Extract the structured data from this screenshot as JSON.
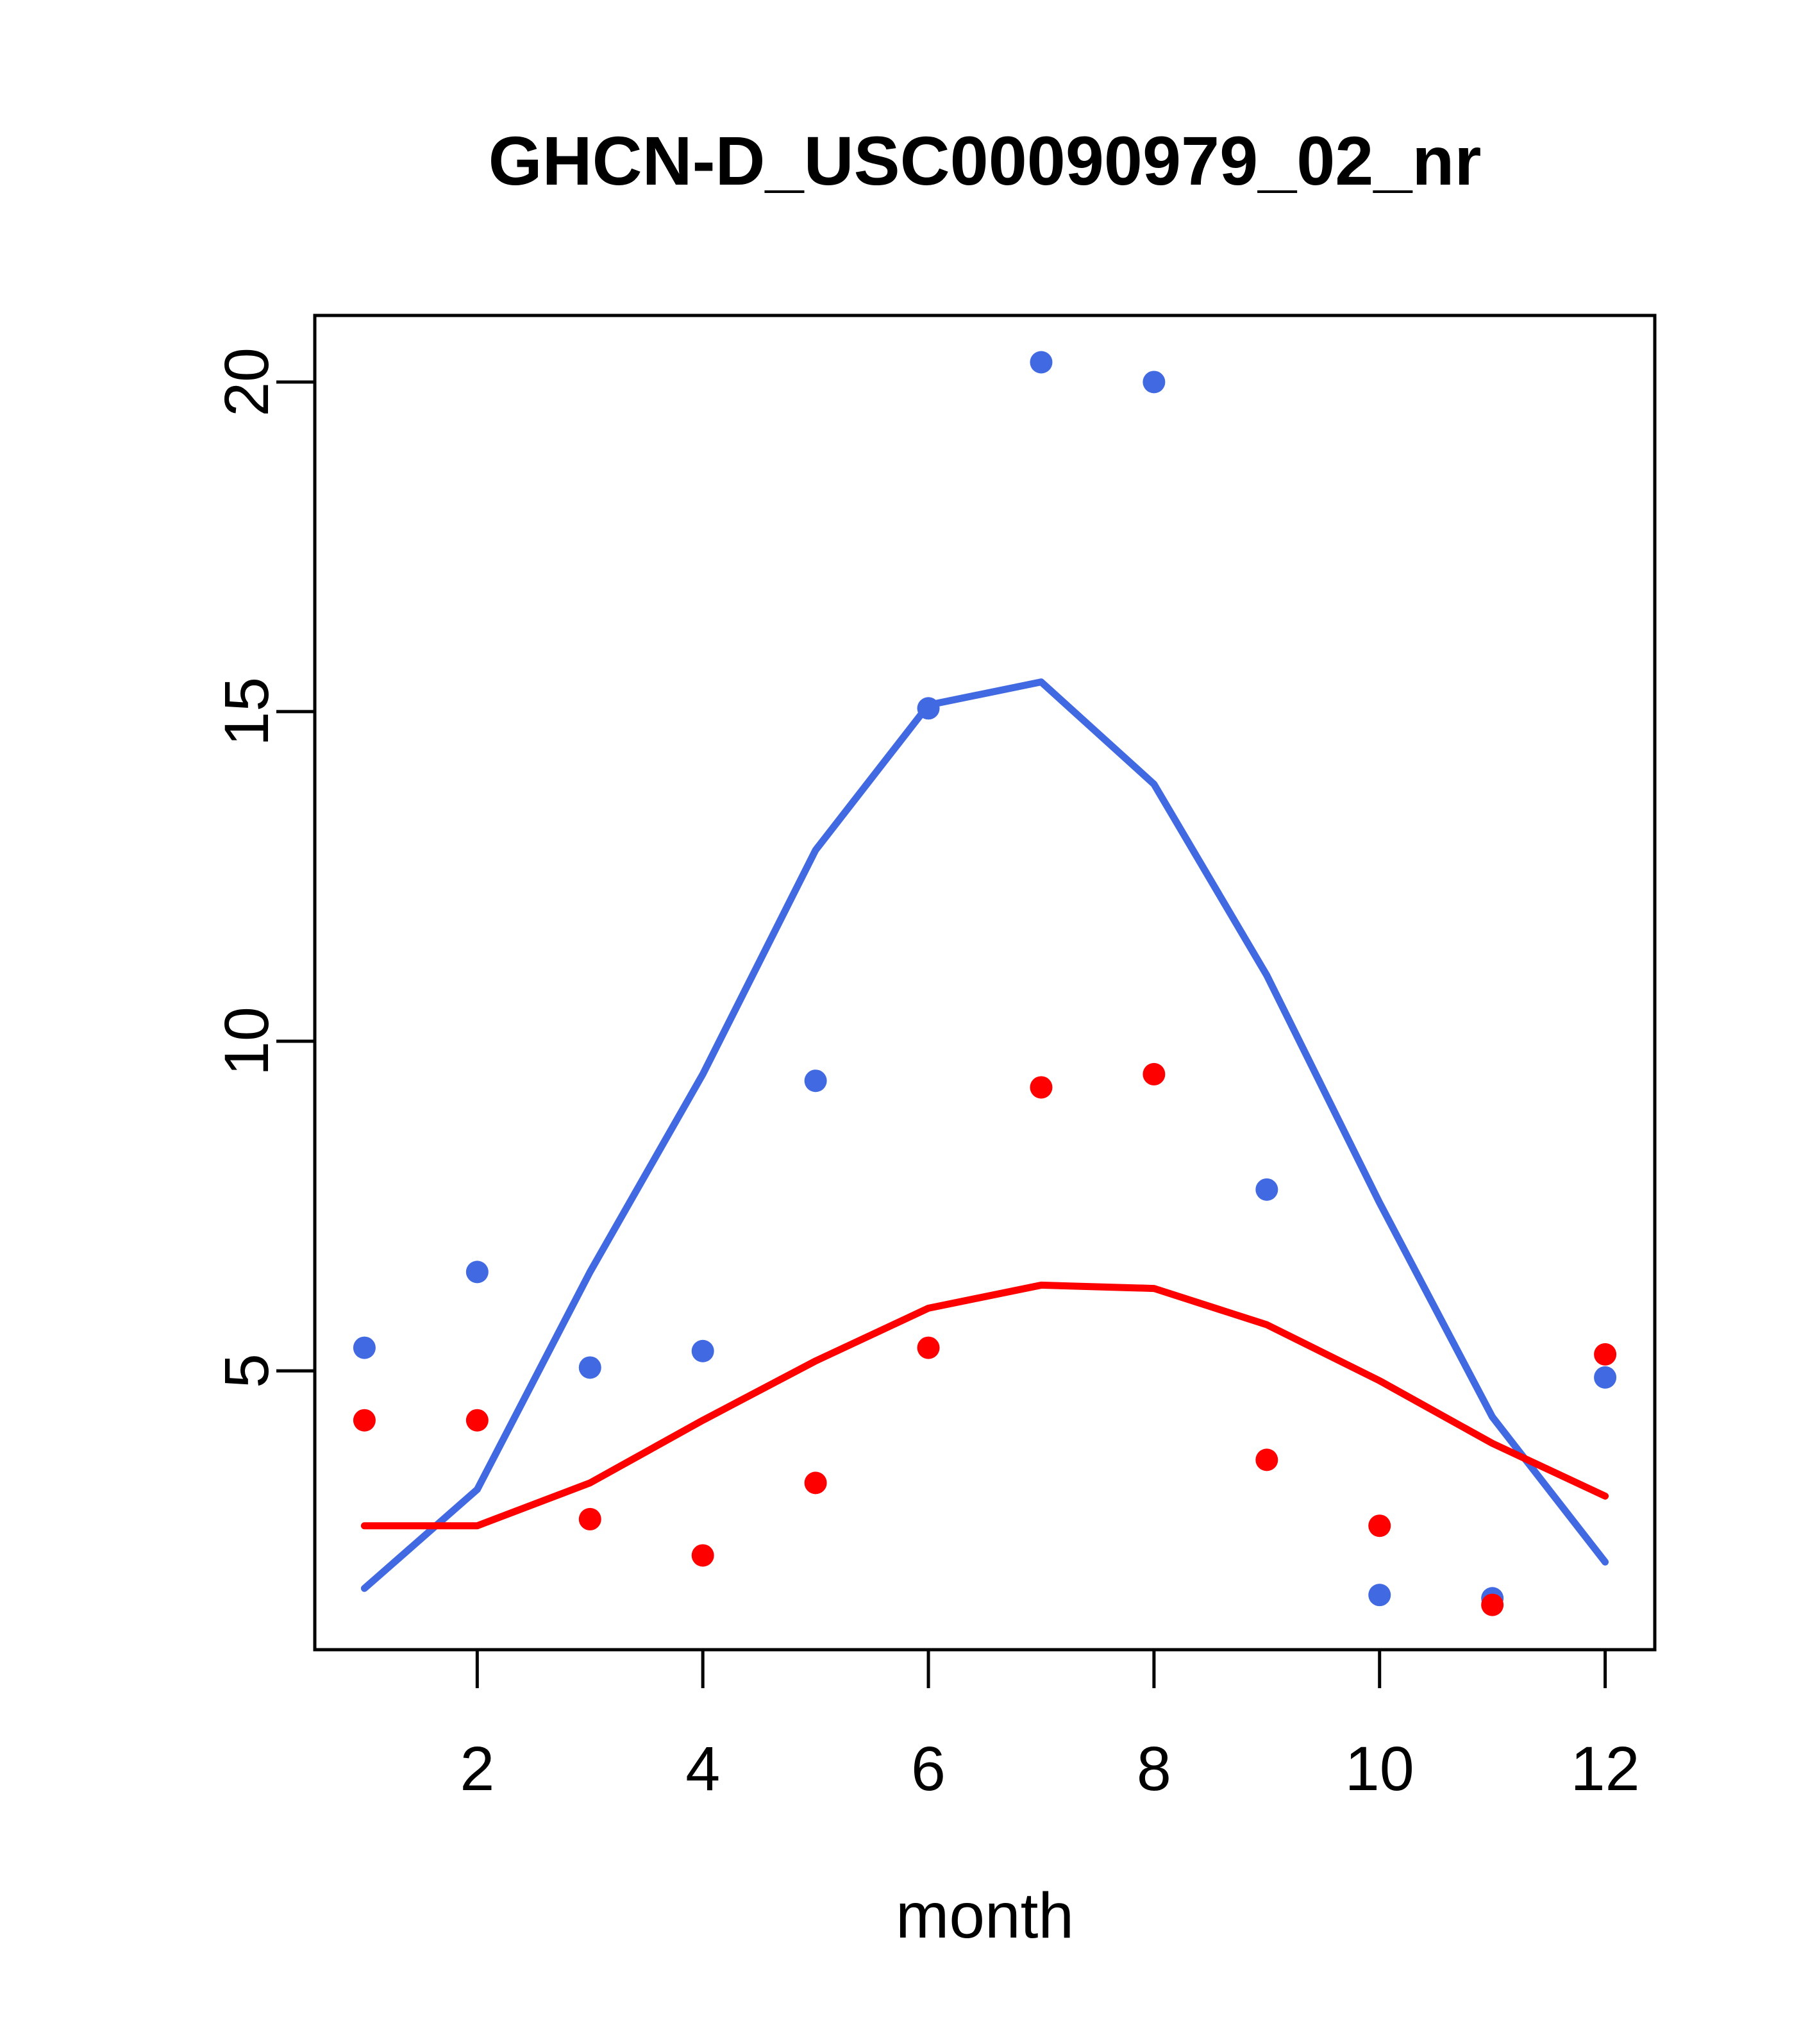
{
  "chart_data": {
    "type": "scatter",
    "title": "GHCN-D_USC00090979_02_nr",
    "xlabel": "month",
    "ylabel": "",
    "x": [
      1,
      2,
      3,
      4,
      5,
      6,
      7,
      8,
      9,
      10,
      11,
      12
    ],
    "x_ticks": [
      2,
      4,
      6,
      8,
      10,
      12
    ],
    "y_ticks": [
      5,
      10,
      15,
      20
    ],
    "xlim": [
      0.56,
      12.44
    ],
    "ylim": [
      0.77,
      21.01
    ],
    "grid": false,
    "legend": "none",
    "colors": {
      "blue": "#4169E1",
      "red": "#FF0000",
      "axis": "#000000"
    },
    "series": [
      {
        "name": "blue-points",
        "kind": "points",
        "color": "#4169E1",
        "values": [
          5.35,
          6.5,
          5.05,
          5.3,
          9.4,
          15.05,
          20.3,
          20.0,
          7.75,
          1.6,
          1.55,
          4.9
        ]
      },
      {
        "name": "red-points",
        "kind": "points",
        "color": "#FF0000",
        "values": [
          4.25,
          4.25,
          2.75,
          2.2,
          3.3,
          5.35,
          9.3,
          9.5,
          3.65,
          2.65,
          1.45,
          5.25
        ]
      },
      {
        "name": "blue-line",
        "kind": "line",
        "color": "#4169E1",
        "values": [
          1.7,
          3.2,
          6.5,
          9.5,
          12.9,
          15.1,
          15.45,
          13.9,
          11.0,
          7.55,
          4.3,
          2.1
        ]
      },
      {
        "name": "red-line",
        "kind": "line",
        "color": "#FF0000",
        "values": [
          2.65,
          2.65,
          3.3,
          4.25,
          5.15,
          5.95,
          6.3,
          6.25,
          5.7,
          4.85,
          3.9,
          3.1
        ]
      }
    ]
  }
}
